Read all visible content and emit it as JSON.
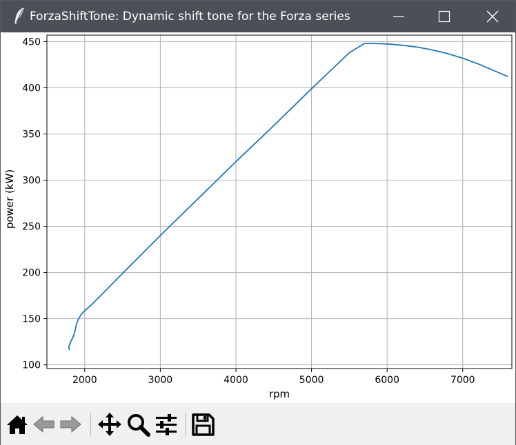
{
  "window": {
    "title": "ForzaShiftTone: Dynamic shift tone for the Forza series",
    "app_icon": "feather-icon",
    "controls": [
      "minimize-icon",
      "maximize-icon",
      "close-icon"
    ]
  },
  "chart_data": {
    "type": "line",
    "title": "",
    "xlabel": "rpm",
    "ylabel": "power (kW)",
    "xlim": [
      1500,
      7650
    ],
    "ylim": [
      96,
      457
    ],
    "xticks": [
      2000,
      3000,
      4000,
      5000,
      6000,
      7000
    ],
    "yticks": [
      100,
      150,
      200,
      250,
      300,
      350,
      400,
      450
    ],
    "grid": true,
    "color": "#1f77b4",
    "series": [
      {
        "x": [
          1800,
          1790,
          1800,
          1820,
          1850,
          1870,
          1880,
          1890,
          1920,
          1950,
          1980,
          2020,
          2100,
          2200,
          2500,
          3000,
          3500,
          4000,
          4500,
          5000,
          5500,
          5700,
          5800,
          6000,
          6200,
          6400,
          6600,
          6800,
          7000,
          7200,
          7400,
          7600
        ],
        "y": [
          116,
          119,
          122,
          126,
          131,
          136,
          140,
          144,
          150,
          154,
          157,
          160,
          166,
          174,
          199,
          240,
          280,
          320,
          359,
          399,
          438,
          448,
          448,
          447.5,
          446,
          444,
          441,
          437,
          432,
          426,
          419,
          412
        ]
      }
    ]
  },
  "toolbar": {
    "buttons": [
      {
        "name": "home-button",
        "icon": "home-icon"
      },
      {
        "name": "back-button",
        "icon": "back-arrow-icon"
      },
      {
        "name": "forward-button",
        "icon": "forward-arrow-icon"
      },
      {
        "name": "pan-button",
        "icon": "move-icon"
      },
      {
        "name": "zoom-button",
        "icon": "magnifier-icon"
      },
      {
        "name": "configure-subplots-button",
        "icon": "sliders-icon"
      },
      {
        "name": "save-button",
        "icon": "floppy-disk-icon"
      }
    ]
  }
}
